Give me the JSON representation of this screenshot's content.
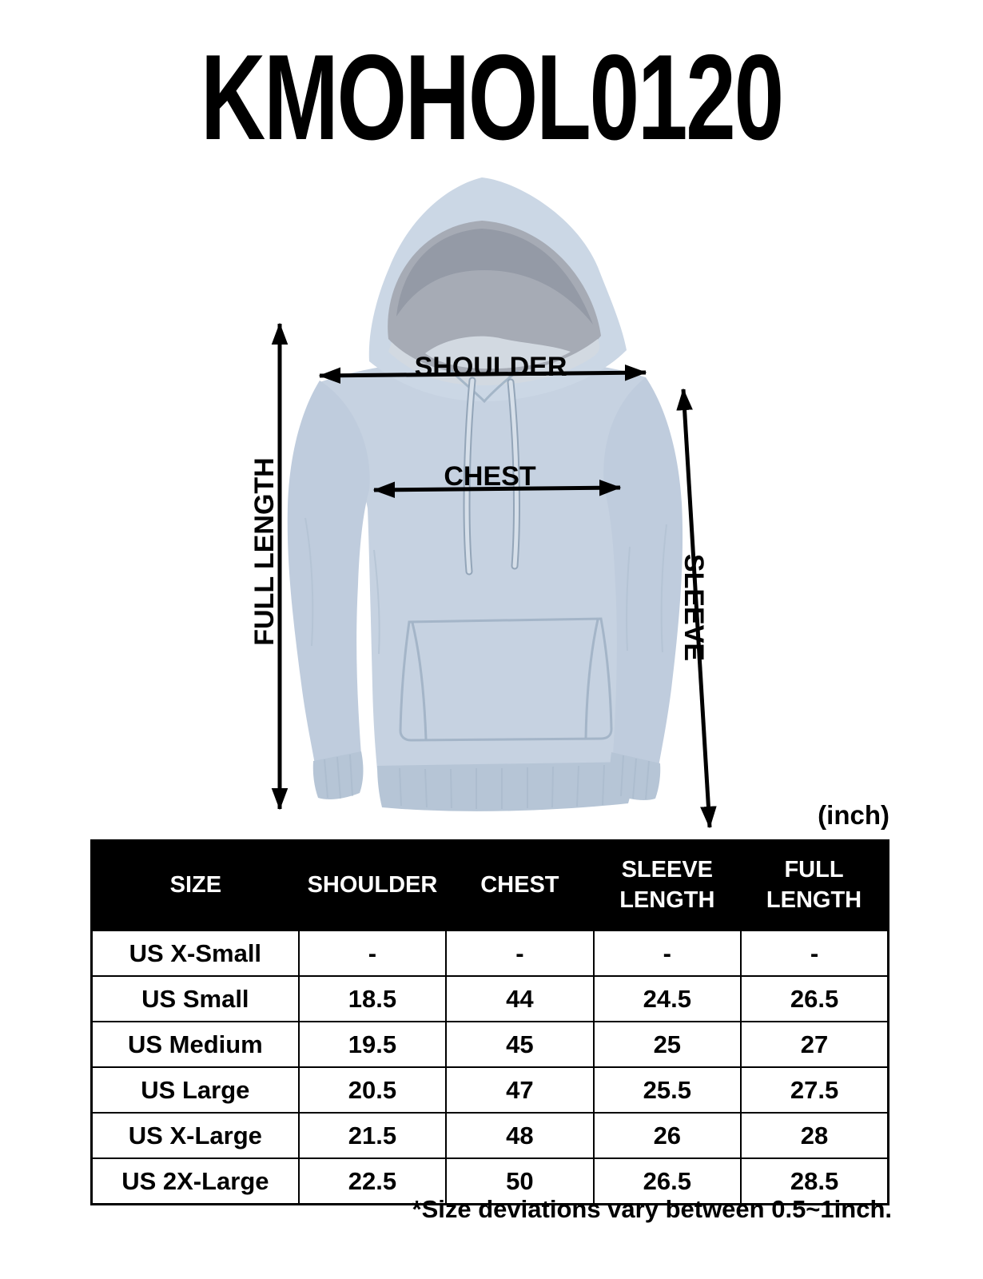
{
  "title": "KMOHOL0120",
  "diagram": {
    "labels": {
      "shoulder": "SHOULDER",
      "chest": "CHEST",
      "full_length": "FULL LENGTH",
      "sleeve": "SLEEVE"
    }
  },
  "table": {
    "unit": "(inch)",
    "columns": [
      "SIZE",
      "SHOULDER",
      "CHEST",
      "SLEEVE\nLENGTH",
      "FULL\nLENGTH"
    ],
    "rows": [
      {
        "size": "US X-Small",
        "values": [
          "-",
          "-",
          "-",
          "-"
        ]
      },
      {
        "size": "US Small",
        "values": [
          "18.5",
          "44",
          "24.5",
          "26.5"
        ]
      },
      {
        "size": "US Medium",
        "values": [
          "19.5",
          "45",
          "25",
          "27"
        ]
      },
      {
        "size": "US Large",
        "values": [
          "20.5",
          "47",
          "25.5",
          "27.5"
        ]
      },
      {
        "size": "US X-Large",
        "values": [
          "21.5",
          "48",
          "26",
          "28"
        ]
      },
      {
        "size": "US 2X-Large",
        "values": [
          "22.5",
          "50",
          "26.5",
          "28.5"
        ]
      }
    ]
  },
  "footnote": "*Size deviations vary between 0.5~1inch.",
  "theme": {
    "background": "#ffffff",
    "text_color": "#000000",
    "arrow_color": "#000000",
    "header_bg": "#000000",
    "header_text": "#ffffff",
    "garment_color": "#c6d2e1",
    "garment_sleeve": "#bfccdd",
    "garment_shade": "#b6c5d6",
    "garment_light": "#cbd7e5",
    "hood_inner": "#a6abb5",
    "hood_inner_dark": "#949aa6",
    "lining_light": "#d2d9e1",
    "seam_color": "#9db0c3"
  }
}
